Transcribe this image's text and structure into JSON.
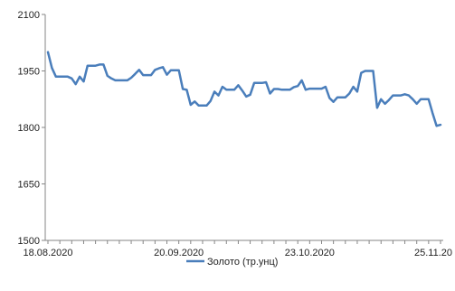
{
  "chart_data": {
    "type": "line",
    "title": "",
    "xlabel": "",
    "ylabel": "",
    "ylim": [
      1500,
      2100
    ],
    "yticks": [
      "2100",
      "1950",
      "1800",
      "1650",
      "1500"
    ],
    "ytick_values": [
      2100,
      1950,
      1800,
      1650,
      1500
    ],
    "xtick_labels": [
      "18.08.2020",
      "20.09.2020",
      "23.10.2020",
      "25.11.20"
    ],
    "grid": "y-axis-only",
    "legend_position": "bottom",
    "series": [
      {
        "name": "Золото (тр.унц)",
        "color": "#4a7ebb",
        "values": [
          2000,
          1958,
          1935,
          1935,
          1935,
          1935,
          1930,
          1915,
          1935,
          1922,
          1964,
          1964,
          1964,
          1967,
          1967,
          1937,
          1930,
          1925,
          1925,
          1925,
          1925,
          1932,
          1942,
          1953,
          1939,
          1939,
          1939,
          1953,
          1957,
          1960,
          1940,
          1952,
          1952,
          1952,
          1902,
          1900,
          1860,
          1869,
          1858,
          1858,
          1858,
          1870,
          1895,
          1885,
          1908,
          1900,
          1900,
          1900,
          1912,
          1898,
          1882,
          1887,
          1918,
          1918,
          1918,
          1920,
          1890,
          1902,
          1902,
          1900,
          1900,
          1900,
          1907,
          1910,
          1925,
          1900,
          1903,
          1903,
          1903,
          1903,
          1908,
          1878,
          1868,
          1880,
          1880,
          1880,
          1890,
          1908,
          1895,
          1945,
          1950,
          1950,
          1950,
          1852,
          1875,
          1863,
          1873,
          1885,
          1885,
          1885,
          1888,
          1885,
          1875,
          1863,
          1875,
          1875,
          1875,
          1838,
          1804,
          1807
        ]
      }
    ]
  }
}
